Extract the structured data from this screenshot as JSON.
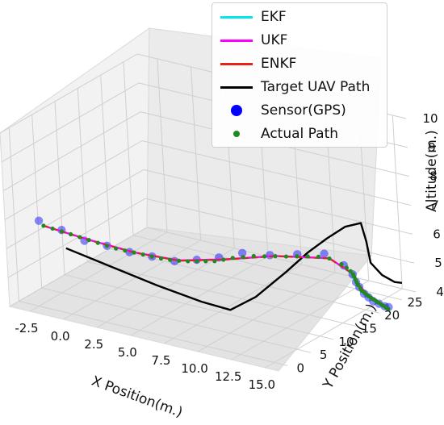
{
  "chart_data": {
    "type": "line3d",
    "xlabel": "X Position(m.)",
    "ylabel": "Y Position(m.)",
    "zlabel": "Altitude(m.)",
    "xlim": [
      -4,
      16
    ],
    "ylim": [
      -2,
      28
    ],
    "zlim": [
      4,
      10
    ],
    "xticks": [
      "-2.5",
      "0.0",
      "2.5",
      "5.0",
      "7.5",
      "10.0",
      "12.5",
      "15.0"
    ],
    "yticks": [
      "0",
      "5",
      "10",
      "15",
      "20",
      "25"
    ],
    "zticks": [
      "4",
      "5",
      "6",
      "7",
      "8",
      "9",
      "10"
    ],
    "grid": true,
    "legend_position": "top-right",
    "legend": [
      {
        "label": "EKF",
        "color": "#00e5ee",
        "kind": "line"
      },
      {
        "label": "UKF",
        "color": "#ff00ff",
        "kind": "line"
      },
      {
        "label": "ENKF",
        "color": "#e8201a",
        "kind": "line"
      },
      {
        "label": "Target UAV Path",
        "color": "#000000",
        "kind": "line"
      },
      {
        "label": "Sensor(GPS)",
        "color": "#0000ff",
        "kind": "dot"
      },
      {
        "label": "Actual Path",
        "color": "#1f8a1f",
        "kind": "smalldot"
      }
    ],
    "series": [
      {
        "name": "Target UAV Path",
        "color": "#000000",
        "x": [
          -2.0,
          1.0,
          4.0,
          7.0,
          9.0,
          10.5,
          12.0,
          13.0,
          13.8,
          14.5,
          15.0,
          14.8,
          14.5,
          14.6,
          14.8,
          15.0
        ],
        "y": [
          5.0,
          6.0,
          7.0,
          7.8,
          8.2,
          9.5,
          12.0,
          14.0,
          16.0,
          18.0,
          20.0,
          21.5,
          23.0,
          25.0,
          27.0,
          28.0
        ],
        "z": [
          5.6,
          5.2,
          4.8,
          4.5,
          4.4,
          4.9,
          5.7,
          6.3,
          6.7,
          7.0,
          7.0,
          6.2,
          5.3,
          4.7,
          4.3,
          4.2
        ]
      },
      {
        "name": "Actual Path",
        "color": "#1f8a1f",
        "x": [
          -3.6,
          -3.0,
          -2.4,
          -1.8,
          -1.2,
          -0.6,
          0.0,
          0.6,
          1.2,
          1.8,
          2.4,
          3.0,
          3.6,
          4.2,
          4.8,
          5.4,
          6.0,
          6.6,
          7.2,
          7.8,
          8.4,
          9.0,
          9.6,
          10.2,
          10.8,
          11.4,
          12.0,
          12.6,
          13.2,
          13.8,
          14.4,
          15.0,
          15.2,
          15.3,
          15.3,
          15.2,
          15.1,
          15.0,
          14.9,
          14.9,
          14.8,
          14.8,
          14.7,
          14.7,
          14.6,
          14.6,
          14.6,
          14.6,
          14.6,
          14.6,
          14.6,
          14.6,
          14.6
        ],
        "y": [
          5.0,
          5.2,
          5.4,
          5.6,
          5.8,
          6.0,
          6.2,
          6.4,
          6.6,
          6.8,
          7.0,
          7.2,
          7.4,
          7.6,
          7.8,
          8.0,
          8.2,
          8.4,
          8.6,
          8.8,
          9.0,
          9.3,
          9.8,
          10.4,
          11.0,
          11.6,
          12.2,
          12.8,
          13.4,
          14.0,
          14.6,
          15.4,
          15.9,
          16.4,
          16.9,
          17.4,
          17.9,
          18.4,
          18.9,
          19.4,
          19.9,
          20.4,
          20.9,
          21.4,
          21.9,
          22.4,
          22.9,
          23.4,
          23.9,
          24.4,
          24.9,
          25.4,
          25.9
        ],
        "z": [
          6.2,
          6.15,
          6.1,
          6.05,
          6.0,
          5.95,
          5.9,
          5.85,
          5.8,
          5.78,
          5.76,
          5.74,
          5.72,
          5.7,
          5.7,
          5.72,
          5.75,
          5.8,
          5.85,
          5.9,
          6.0,
          6.1,
          6.15,
          6.2,
          6.2,
          6.22,
          6.22,
          6.24,
          6.25,
          6.25,
          6.2,
          6.0,
          5.85,
          5.7,
          5.55,
          5.4,
          5.25,
          5.1,
          4.95,
          4.8,
          4.65,
          4.55,
          4.45,
          4.35,
          4.25,
          4.15,
          4.05,
          3.95,
          3.85,
          3.75,
          3.65,
          3.55,
          3.45
        ]
      },
      {
        "name": "Sensor(GPS)",
        "color": "#0000ff",
        "x": [
          -3.9,
          -2.4,
          -0.9,
          0.6,
          2.1,
          3.6,
          5.1,
          6.6,
          8.1,
          9.6,
          11.1,
          12.6,
          14.1,
          15.1,
          15.3,
          15.1,
          14.9,
          14.8,
          14.7,
          14.6,
          14.6,
          14.6,
          14.6
        ],
        "y": [
          4.9,
          5.4,
          5.9,
          6.4,
          6.9,
          7.4,
          7.9,
          8.4,
          8.9,
          9.7,
          11.3,
          12.9,
          14.4,
          15.6,
          16.8,
          18.0,
          19.2,
          20.4,
          21.6,
          22.8,
          24.0,
          25.2,
          26.0
        ],
        "z": [
          6.35,
          6.15,
          5.9,
          5.85,
          5.75,
          5.72,
          5.68,
          5.85,
          6.05,
          6.3,
          6.25,
          6.3,
          6.35,
          5.95,
          5.55,
          5.15,
          4.85,
          4.5,
          4.25,
          4.0,
          3.8,
          3.6,
          3.5
        ]
      },
      {
        "name": "ENKF",
        "color": "#e8201a",
        "x": [
          -3.6,
          -0.6,
          2.4,
          5.4,
          8.4,
          11.4,
          14.4,
          15.3,
          15.0,
          14.8,
          14.7,
          14.6,
          14.6
        ],
        "y": [
          5.0,
          6.0,
          7.0,
          8.0,
          9.0,
          11.6,
          14.6,
          16.9,
          18.9,
          20.9,
          22.9,
          24.9,
          25.9
        ],
        "z": [
          6.2,
          5.95,
          5.76,
          5.72,
          6.0,
          6.22,
          6.2,
          5.55,
          4.95,
          4.45,
          4.05,
          3.65,
          3.45
        ]
      },
      {
        "name": "UKF",
        "color": "#ff00ff",
        "x": [
          -3.6,
          -0.6,
          2.4,
          5.4,
          8.4,
          11.4,
          14.4,
          15.3,
          15.0,
          14.8,
          14.7,
          14.6,
          14.6
        ],
        "y": [
          5.0,
          6.0,
          7.0,
          8.0,
          9.0,
          11.6,
          14.6,
          16.9,
          18.9,
          20.9,
          22.9,
          24.9,
          25.9
        ],
        "z": [
          6.2,
          5.96,
          5.77,
          5.73,
          6.01,
          6.23,
          6.21,
          5.56,
          4.96,
          4.46,
          4.06,
          3.66,
          3.46
        ]
      },
      {
        "name": "EKF",
        "color": "#00e5ee",
        "x": [
          -3.6,
          -0.6,
          2.4,
          5.4,
          8.4,
          11.4,
          14.4,
          15.3,
          15.0,
          14.8,
          14.7,
          14.6,
          14.6
        ],
        "y": [
          5.0,
          6.0,
          7.0,
          8.0,
          9.0,
          11.6,
          14.6,
          16.9,
          18.9,
          20.9,
          22.9,
          24.9,
          25.9
        ],
        "z": [
          6.2,
          5.95,
          5.76,
          5.72,
          6.0,
          6.22,
          6.2,
          5.55,
          4.95,
          4.45,
          4.05,
          3.65,
          3.45
        ]
      }
    ]
  }
}
